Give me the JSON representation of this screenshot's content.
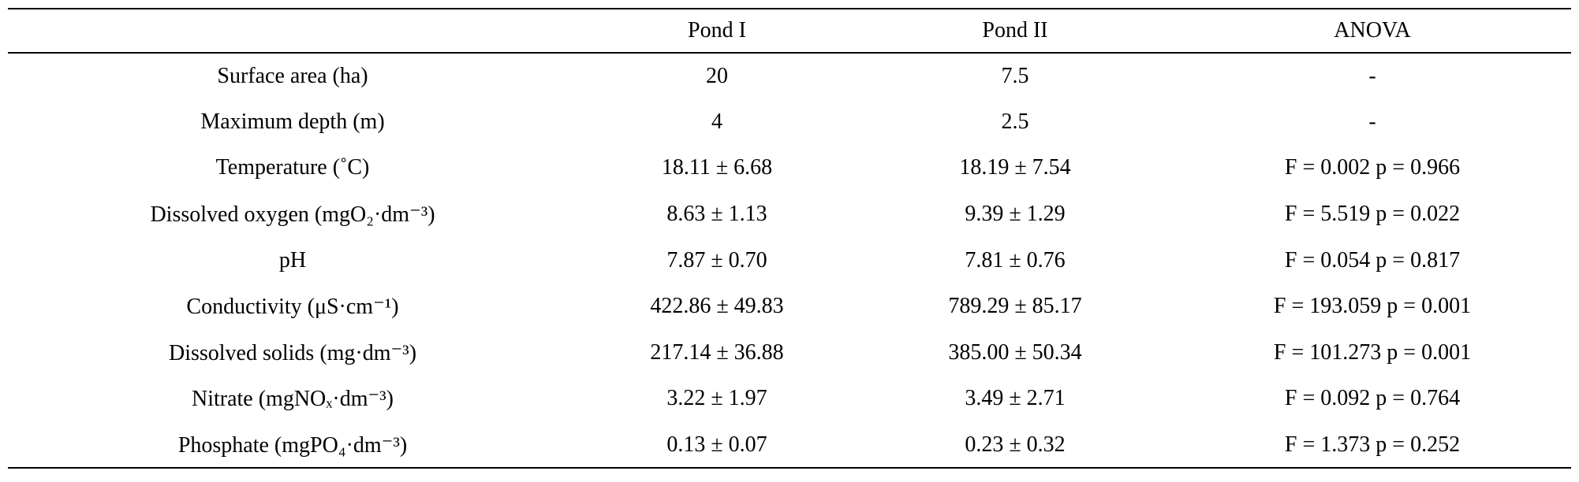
{
  "table": {
    "header": [
      "Pond I",
      "Pond II",
      "ANOVA"
    ],
    "rows": [
      [
        "Surface area (ha)",
        "20",
        "7.5",
        "-"
      ],
      [
        "Maximum depth (m)",
        "4",
        "2.5",
        "-"
      ],
      [
        "Temperature (˚C)",
        "18.11 ± 6.68",
        "18.19 ± 7.54",
        "F = 0.002 p = 0.966"
      ],
      [
        "Dissolved oxygen (mgO₂·dm⁻³)",
        "8.63 ± 1.13",
        "9.39 ± 1.29",
        "F = 5.519 p = 0.022"
      ],
      [
        "pH",
        "7.87 ± 0.70",
        "7.81 ± 0.76",
        "F = 0.054 p = 0.817"
      ],
      [
        "Conductivity (μS·cm⁻¹)",
        "422.86 ± 49.83",
        "789.29 ± 85.17",
        "F = 193.059 p = 0.001"
      ],
      [
        "Dissolved solids (mg·dm⁻³)",
        "217.14 ± 36.88",
        "385.00 ± 50.34",
        "F = 101.273 p = 0.001"
      ],
      [
        "Nitrate (mgNOₓ·dm⁻³)",
        "3.22 ± 1.97",
        "3.49 ± 2.71",
        "F = 0.092 p = 0.764"
      ],
      [
        "Phosphate (mgPO₄·dm⁻³)",
        "0.13 ± 0.07",
        "0.23 ± 0.32",
        "F = 1.373 p = 0.252"
      ]
    ]
  }
}
